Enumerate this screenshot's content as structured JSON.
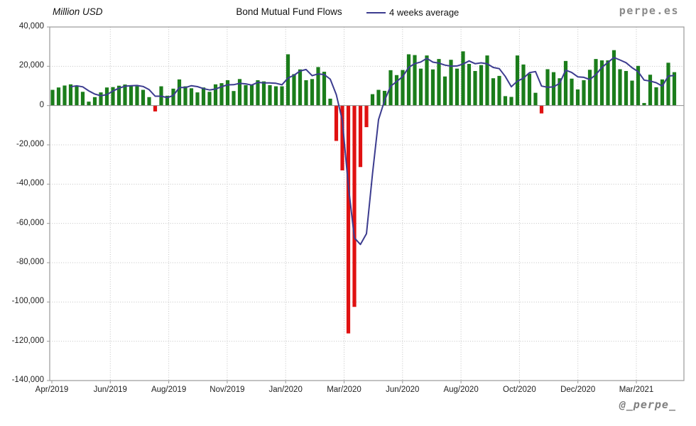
{
  "header": {
    "y_axis_title": "Million USD",
    "title": "Bond Mutual Fund Flows",
    "legend_label": "4 weeks average"
  },
  "branding": {
    "site": "perpe.es",
    "handle": "@_perpe_"
  },
  "chart_data": {
    "type": "bar",
    "title": "Bond Mutual Fund Flows",
    "ylabel": "Million USD",
    "legend": [
      "4 weeks average"
    ],
    "legend_position": "top",
    "grid": true,
    "ylim": [
      -140000,
      40000
    ],
    "y_ticks": [
      40000,
      20000,
      0,
      -20000,
      -40000,
      -60000,
      -80000,
      -100000,
      -120000,
      -140000
    ],
    "y_tick_labels": [
      "40,000",
      "20,000",
      "0",
      "-20,000",
      "-40,000",
      "-60,000",
      "-80,000",
      "-100,000",
      "-120,000",
      "-140,000"
    ],
    "x_tick_labels": [
      "Apr/2019",
      "Jun/2019",
      "Aug/2019",
      "Nov/2019",
      "Jan/2020",
      "Mar/2020",
      "Jun/2020",
      "Aug/2020",
      "Oct/2020",
      "Dec/2020",
      "Mar/2021"
    ],
    "moving_average_window": 4,
    "bar_color_positive": "#1b7d1b",
    "bar_color_negative": "#e01111",
    "line_color": "#3c3c8f",
    "values": [
      8000,
      9200,
      10200,
      10800,
      10100,
      7000,
      2000,
      4300,
      6700,
      9200,
      9400,
      10100,
      10700,
      10300,
      9800,
      8000,
      4300,
      -3000,
      9800,
      5000,
      8600,
      13300,
      9800,
      8800,
      6700,
      9200,
      7000,
      10800,
      11400,
      12900,
      7400,
      13500,
      10400,
      10400,
      12900,
      12300,
      10400,
      9800,
      9800,
      26100,
      16000,
      18400,
      12900,
      13500,
      19600,
      17200,
      3500,
      -18000,
      -33000,
      -116000,
      -102500,
      -31300,
      -11000,
      5800,
      8000,
      7500,
      18000,
      15500,
      18100,
      26100,
      25700,
      18800,
      25500,
      18400,
      23700,
      14800,
      23300,
      18800,
      27600,
      21200,
      17600,
      20600,
      25500,
      13900,
      15100,
      4800,
      4400,
      25500,
      20900,
      16300,
      6500,
      -4000,
      18500,
      17000,
      13900,
      22700,
      13700,
      8200,
      12900,
      18200,
      23700,
      23000,
      23000,
      28200,
      18500,
      17600,
      12700,
      20200,
      1300,
      15700,
      9300,
      13300,
      21800,
      17000
    ]
  }
}
